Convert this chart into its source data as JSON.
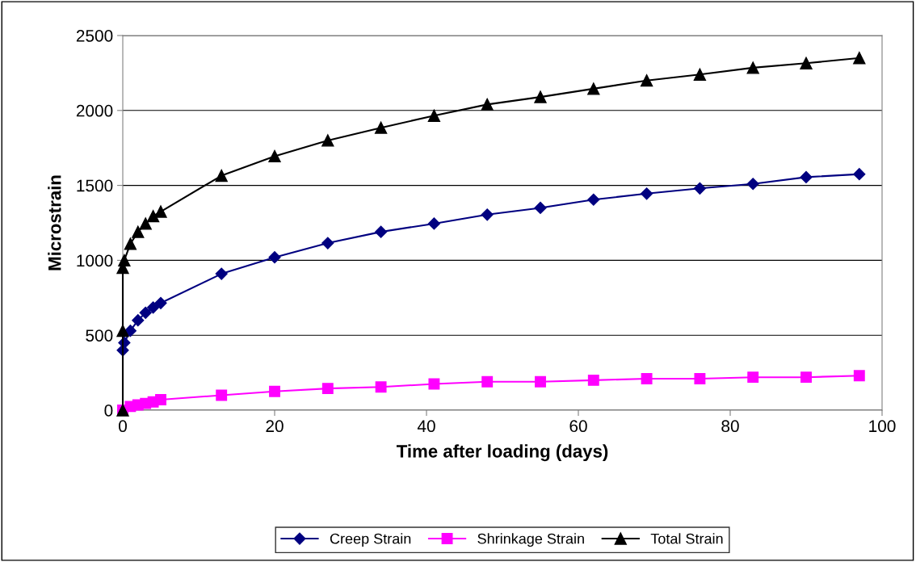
{
  "chart_data": {
    "type": "line",
    "xlabel": "Time after loading (days)",
    "ylabel": "Microstrain",
    "xlim": [
      0,
      100
    ],
    "xticks": [
      0,
      20,
      40,
      60,
      80,
      100
    ],
    "ylim": [
      0,
      2500
    ],
    "yticks": [
      0,
      500,
      1000,
      1500,
      2000,
      2500
    ],
    "grid": "y",
    "legend": "bottom",
    "line_style": "solid",
    "series": [
      {
        "name": "Creep Strain",
        "color": "#000080",
        "marker": "diamond",
        "x": [
          0,
          0.2,
          1,
          2,
          3,
          4,
          5,
          13,
          20,
          27,
          34,
          41,
          48,
          55,
          62,
          69,
          76,
          83,
          90,
          97
        ],
        "values": [
          400,
          450,
          530,
          600,
          650,
          685,
          715,
          910,
          1020,
          1115,
          1190,
          1245,
          1305,
          1350,
          1405,
          1445,
          1480,
          1510,
          1555,
          1575
        ]
      },
      {
        "name": "Shrinkage Strain",
        "color": "#ff00ff",
        "marker": "square",
        "x": [
          0,
          0.2,
          1,
          2,
          3,
          4,
          5,
          13,
          20,
          27,
          34,
          41,
          48,
          55,
          62,
          69,
          76,
          83,
          90,
          97
        ],
        "values": [
          0,
          null,
          25,
          35,
          45,
          55,
          70,
          100,
          125,
          145,
          155,
          175,
          190,
          190,
          200,
          210,
          210,
          220,
          220,
          230
        ]
      },
      {
        "name": "Total Strain",
        "color": "#000000",
        "marker": "triangle",
        "x": [
          0,
          0,
          0,
          0.2,
          1,
          2,
          3,
          4,
          5,
          13,
          20,
          27,
          34,
          41,
          48,
          55,
          62,
          69,
          76,
          83,
          90,
          97
        ],
        "values": [
          0,
          530,
          950,
          1000,
          1110,
          1190,
          1245,
          1295,
          1325,
          1565,
          1695,
          1800,
          1885,
          1965,
          2040,
          2090,
          2145,
          2200,
          2240,
          2285,
          2315,
          2350
        ]
      }
    ]
  }
}
